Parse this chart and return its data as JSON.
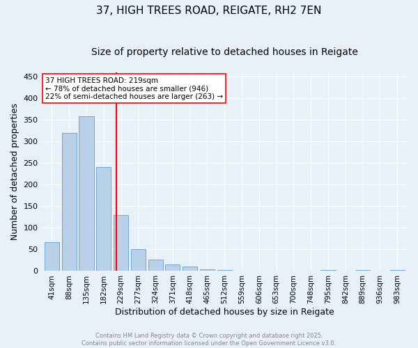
{
  "title": "37, HIGH TREES ROAD, REIGATE, RH2 7EN",
  "subtitle": "Size of property relative to detached houses in Reigate",
  "xlabel": "Distribution of detached houses by size in Reigate",
  "ylabel": "Number of detached properties",
  "bar_values": [
    67,
    320,
    358,
    241,
    130,
    50,
    26,
    15,
    10,
    4,
    3,
    0,
    1,
    0,
    0,
    0,
    2,
    0,
    2,
    0,
    2
  ],
  "bar_labels": [
    "41sqm",
    "88sqm",
    "135sqm",
    "182sqm",
    "229sqm",
    "277sqm",
    "324sqm",
    "371sqm",
    "418sqm",
    "465sqm",
    "512sqm",
    "559sqm",
    "606sqm",
    "653sqm",
    "700sqm",
    "748sqm",
    "795sqm",
    "842sqm",
    "889sqm",
    "936sqm",
    "983sqm"
  ],
  "bar_color": "#b8d0e8",
  "bar_edge_color": "#5a9fd4",
  "bg_color": "#e8f0f8",
  "grid_color": "#ffffff",
  "vline_x": 3.72,
  "vline_color": "red",
  "annotation_text": "37 HIGH TREES ROAD: 219sqm\n← 78% of detached houses are smaller (946)\n22% of semi-detached houses are larger (263) →",
  "annotation_box_color": "white",
  "annotation_box_edge": "red",
  "ylim": [
    0,
    460
  ],
  "yticks": [
    0,
    50,
    100,
    150,
    200,
    250,
    300,
    350,
    400,
    450
  ],
  "footer_text": "Contains HM Land Registry data © Crown copyright and database right 2025.\nContains public sector information licensed under the Open Government Licence v3.0.",
  "footer_color": "#888888",
  "title_fontsize": 11,
  "subtitle_fontsize": 10,
  "axis_label_fontsize": 9,
  "tick_fontsize": 7.5,
  "annot_fontsize": 7.5
}
